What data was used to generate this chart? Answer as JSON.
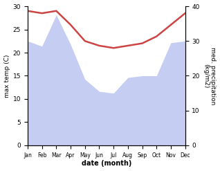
{
  "months": [
    "Jan",
    "Feb",
    "Mar",
    "Apr",
    "May",
    "Jun",
    "Jul",
    "Aug",
    "Sep",
    "Oct",
    "Nov",
    "Dec"
  ],
  "max_temp": [
    29.0,
    28.5,
    29.0,
    26.0,
    22.5,
    21.5,
    21.0,
    21.5,
    22.0,
    23.5,
    26.0,
    28.5
  ],
  "precipitation": [
    30.0,
    28.5,
    37.5,
    29.0,
    19.0,
    15.5,
    15.0,
    19.5,
    20.0,
    20.0,
    29.5,
    30.0
  ],
  "temp_ylim": [
    0,
    30
  ],
  "precip_ylim": [
    0,
    40
  ],
  "temp_color": "#cc4444",
  "precip_fill_color": "#c5cdf2",
  "xlabel": "date (month)",
  "ylabel_left": "max temp (C)",
  "ylabel_right": "med. precipitation\n(kg/m2)",
  "temp_linewidth": 1.8,
  "precip_fill_alpha": 1.0
}
